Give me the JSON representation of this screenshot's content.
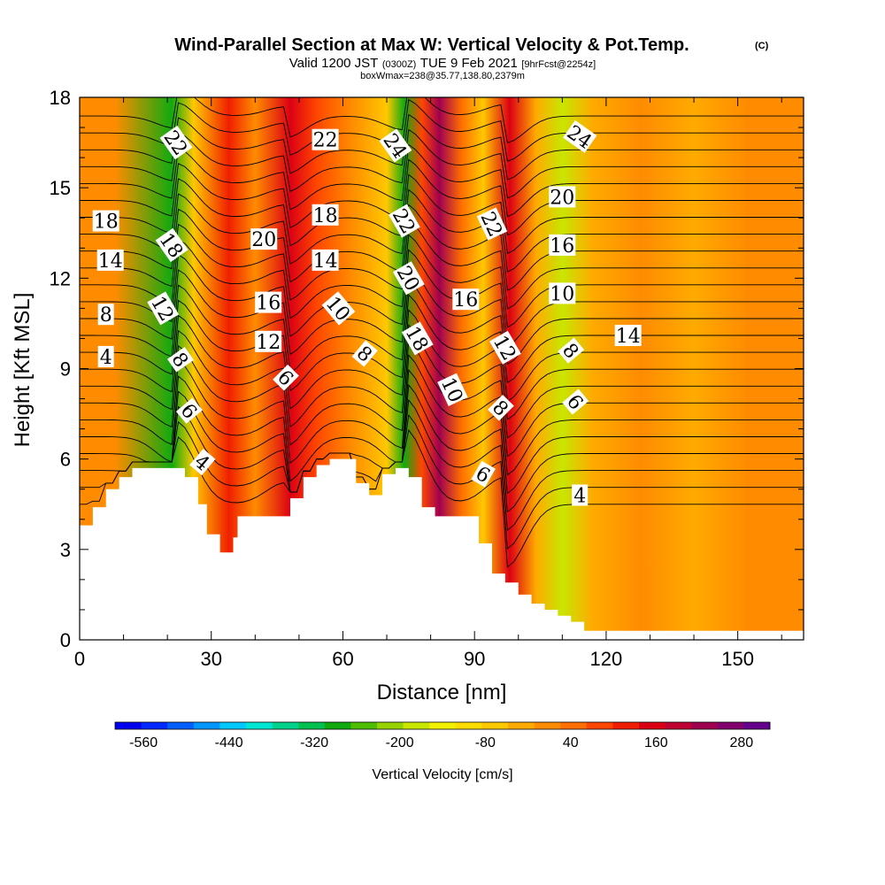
{
  "title": {
    "main": "Wind-Parallel Section at Max W: Vertical Velocity & Pot.Temp.",
    "copyright": "(C)",
    "valid_prefix": "Valid 1200 JST",
    "valid_utc": "(0300Z)",
    "valid_date": "TUE 9 Feb 2021",
    "forecast": "[9hrFcst@2254z]",
    "box_info": "boxWmax=238@35.77,138.80,2379m"
  },
  "chart_data": {
    "type": "heatmap",
    "xlabel": "Distance [nm]",
    "ylabel": "Height [Kft MSL]",
    "xlim": [
      0,
      165
    ],
    "ylim": [
      0,
      18
    ],
    "x_ticks": [
      0,
      30,
      60,
      90,
      120,
      150
    ],
    "y_ticks": [
      0,
      3,
      6,
      9,
      12,
      15,
      18
    ],
    "colorbar": {
      "label": "Vertical Velocity [cm/s]",
      "min": -600,
      "max": 320,
      "step": 40,
      "tick_values": [
        -560,
        -440,
        -320,
        -200,
        -80,
        40,
        160,
        280
      ],
      "colors": [
        "#0000ee",
        "#0028ff",
        "#0060ff",
        "#0096ff",
        "#00c8ff",
        "#00e6d2",
        "#00d28c",
        "#00c050",
        "#10aa10",
        "#50be00",
        "#96d200",
        "#c8e600",
        "#f0f000",
        "#ffdc00",
        "#ffc800",
        "#ffaa00",
        "#ff8c00",
        "#ff6e00",
        "#ff4600",
        "#f01e00",
        "#dc0014",
        "#be0032",
        "#a00050",
        "#82006e",
        "#64008c"
      ]
    },
    "background_color": "#ffb400",
    "terrain_color": "#ffffff",
    "terrain_profile": [
      [
        0,
        3.8
      ],
      [
        3,
        4.4
      ],
      [
        6,
        5.0
      ],
      [
        9,
        5.4
      ],
      [
        12,
        5.7
      ],
      [
        15,
        5.7
      ],
      [
        18,
        5.7
      ],
      [
        21,
        5.7
      ],
      [
        24,
        5.4
      ],
      [
        27,
        4.5
      ],
      [
        29,
        3.5
      ],
      [
        30,
        3.5
      ],
      [
        32,
        2.9
      ],
      [
        35,
        3.4
      ],
      [
        36,
        4.1
      ],
      [
        40,
        4.1
      ],
      [
        45,
        4.1
      ],
      [
        48,
        4.7
      ],
      [
        51,
        5.4
      ],
      [
        54,
        5.8
      ],
      [
        57,
        6.0
      ],
      [
        60,
        6.0
      ],
      [
        63,
        5.2
      ],
      [
        66,
        4.8
      ],
      [
        69,
        5.5
      ],
      [
        72,
        5.7
      ],
      [
        75,
        5.4
      ],
      [
        78,
        4.4
      ],
      [
        81,
        4.1
      ],
      [
        85,
        4.1
      ],
      [
        89,
        4.1
      ],
      [
        91,
        3.2
      ],
      [
        94,
        2.2
      ],
      [
        97,
        1.9
      ],
      [
        100,
        1.5
      ],
      [
        103,
        1.2
      ],
      [
        106,
        1.0
      ],
      [
        109,
        0.8
      ],
      [
        112,
        0.6
      ],
      [
        115,
        0.3
      ],
      [
        120,
        0.3
      ],
      [
        125,
        0.3
      ],
      [
        130,
        0.3
      ],
      [
        135,
        0.3
      ],
      [
        140,
        0.3
      ],
      [
        145,
        0.3
      ],
      [
        150,
        0.3
      ],
      [
        155,
        0.3
      ],
      [
        160,
        0.3
      ],
      [
        165,
        0.3
      ]
    ],
    "w_bands": [
      {
        "x": 8,
        "w": 40
      },
      {
        "x": 21,
        "w": -250
      },
      {
        "x": 26,
        "w": -40
      },
      {
        "x": 34,
        "w": 160
      },
      {
        "x": 40,
        "w": 40
      },
      {
        "x": 48,
        "w": 200
      },
      {
        "x": 54,
        "w": 120
      },
      {
        "x": 62,
        "w": 40
      },
      {
        "x": 70,
        "w": -20
      },
      {
        "x": 74,
        "w": -260
      },
      {
        "x": 78,
        "w": 120
      },
      {
        "x": 82,
        "w": 300
      },
      {
        "x": 87,
        "w": 80
      },
      {
        "x": 92,
        "w": -40
      },
      {
        "x": 98,
        "w": 220
      },
      {
        "x": 104,
        "w": 0
      },
      {
        "x": 110,
        "w": -160
      },
      {
        "x": 117,
        "w": 20
      },
      {
        "x": 128,
        "w": 60
      },
      {
        "x": 140,
        "w": 20
      },
      {
        "x": 152,
        "w": 60
      },
      {
        "x": 162,
        "w": 40
      }
    ],
    "theta_contour_levels": [
      2,
      3,
      4,
      5,
      6,
      7,
      8,
      9,
      10,
      11,
      12,
      13,
      14,
      15,
      16,
      17,
      18,
      19,
      20,
      21,
      22,
      23,
      24,
      25
    ],
    "contour_labels": [
      {
        "text": "22",
        "x": 22,
        "y": 16.5,
        "rot": 55
      },
      {
        "text": "18",
        "x": 6,
        "y": 13.9,
        "rot": 0
      },
      {
        "text": "14",
        "x": 7,
        "y": 12.6,
        "rot": 0
      },
      {
        "text": "8",
        "x": 6,
        "y": 10.8,
        "rot": 0
      },
      {
        "text": "4",
        "x": 6,
        "y": 9.4,
        "rot": 0
      },
      {
        "text": "18",
        "x": 21,
        "y": 13.1,
        "rot": 55
      },
      {
        "text": "12",
        "x": 19,
        "y": 11.0,
        "rot": 60
      },
      {
        "text": "8",
        "x": 23,
        "y": 9.3,
        "rot": 55
      },
      {
        "text": "6",
        "x": 25,
        "y": 7.6,
        "rot": 50
      },
      {
        "text": "4",
        "x": 28,
        "y": 5.9,
        "rot": 40
      },
      {
        "text": "20",
        "x": 42,
        "y": 13.3,
        "rot": 0
      },
      {
        "text": "16",
        "x": 43,
        "y": 11.2,
        "rot": 0
      },
      {
        "text": "12",
        "x": 43,
        "y": 9.9,
        "rot": 0
      },
      {
        "text": "6",
        "x": 47,
        "y": 8.7,
        "rot": 45
      },
      {
        "text": "22",
        "x": 56,
        "y": 16.6,
        "rot": 0
      },
      {
        "text": "18",
        "x": 56,
        "y": 14.1,
        "rot": 0
      },
      {
        "text": "14",
        "x": 56,
        "y": 12.6,
        "rot": 0
      },
      {
        "text": "10",
        "x": 59,
        "y": 11.0,
        "rot": 50
      },
      {
        "text": "8",
        "x": 65,
        "y": 9.5,
        "rot": 40
      },
      {
        "text": "24",
        "x": 72,
        "y": 16.4,
        "rot": 55
      },
      {
        "text": "22",
        "x": 74,
        "y": 13.9,
        "rot": 60
      },
      {
        "text": "20",
        "x": 75,
        "y": 12.0,
        "rot": 60
      },
      {
        "text": "18",
        "x": 77,
        "y": 10.0,
        "rot": 60
      },
      {
        "text": "16",
        "x": 88,
        "y": 11.3,
        "rot": 0
      },
      {
        "text": "10",
        "x": 85,
        "y": 8.3,
        "rot": 65
      },
      {
        "text": "22",
        "x": 94,
        "y": 13.8,
        "rot": 65
      },
      {
        "text": "12",
        "x": 97,
        "y": 9.7,
        "rot": 60
      },
      {
        "text": "8",
        "x": 96,
        "y": 7.7,
        "rot": 45
      },
      {
        "text": "6",
        "x": 92,
        "y": 5.5,
        "rot": 30
      },
      {
        "text": "24",
        "x": 114,
        "y": 16.7,
        "rot": 35
      },
      {
        "text": "20",
        "x": 110,
        "y": 14.7,
        "rot": 0
      },
      {
        "text": "16",
        "x": 110,
        "y": 13.1,
        "rot": 0
      },
      {
        "text": "10",
        "x": 110,
        "y": 11.5,
        "rot": 0
      },
      {
        "text": "8",
        "x": 112,
        "y": 9.6,
        "rot": 50
      },
      {
        "text": "6",
        "x": 113,
        "y": 7.9,
        "rot": 50
      },
      {
        "text": "14",
        "x": 125,
        "y": 10.1,
        "rot": 0
      },
      {
        "text": "4",
        "x": 114,
        "y": 4.8,
        "rot": 0
      }
    ]
  }
}
